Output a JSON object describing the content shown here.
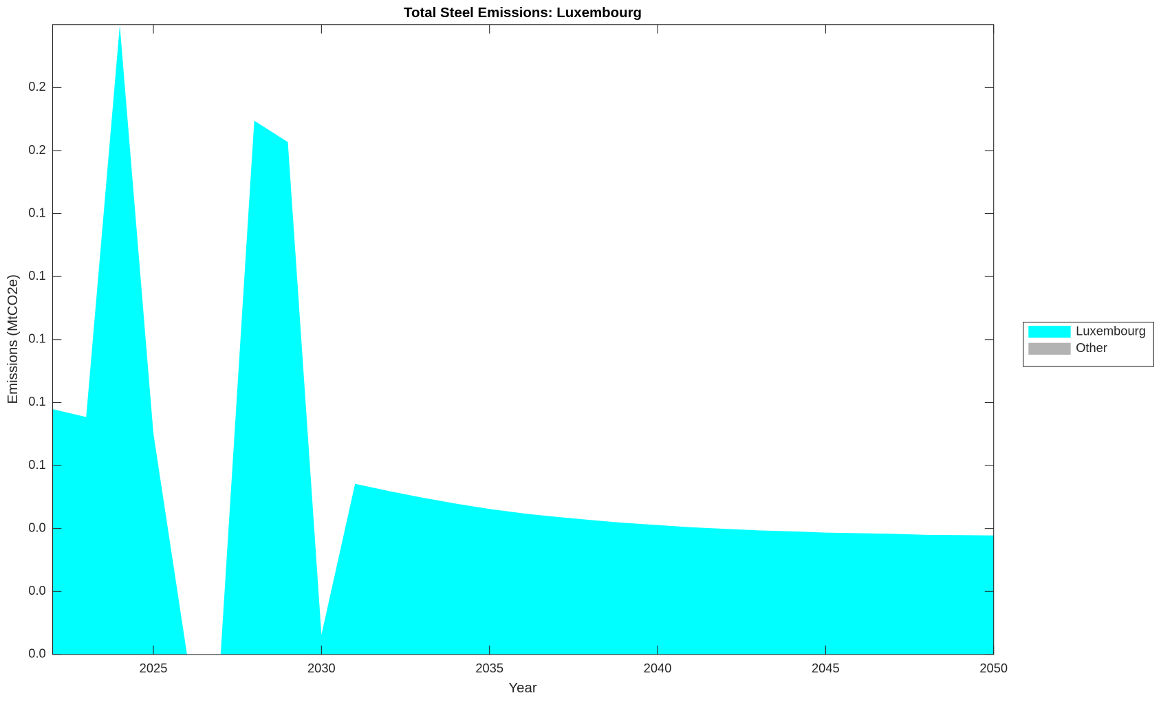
{
  "chart_data": {
    "type": "area",
    "stacked": true,
    "title": "Total Steel Emissions: Luxembourg",
    "x_label": "Year",
    "y_label": "Emissions (MtCO2e)",
    "x": [
      2022,
      2023,
      2024,
      2025,
      2026,
      2027,
      2028,
      2029,
      2030,
      2031,
      2032,
      2033,
      2034,
      2035,
      2036,
      2037,
      2038,
      2039,
      2040,
      2041,
      2042,
      2043,
      2044,
      2045,
      2046,
      2047,
      2048,
      2049,
      2050
    ],
    "series": [
      {
        "name": "Luxembourg",
        "color": "#00ffff",
        "values": [
          0.0779,
          0.0754,
          0.1998,
          0.0702,
          0,
          0,
          0.1695,
          0.1627,
          0.0063,
          0.0542,
          0.0519,
          0.0498,
          0.0479,
          0.0462,
          0.0448,
          0.0437,
          0.0427,
          0.0418,
          0.0411,
          0.0404,
          0.0399,
          0.0394,
          0.0391,
          0.0387,
          0.0385,
          0.0383,
          0.038,
          0.0379,
          0.0378
        ]
      },
      {
        "name": "Other",
        "color": "#b3b3b3",
        "values": [
          0,
          0,
          0,
          0,
          0,
          0,
          0,
          0,
          0,
          0,
          0,
          0,
          0,
          0,
          0,
          0,
          0,
          0,
          0,
          0,
          0,
          0,
          0,
          0,
          0,
          0,
          0,
          0,
          0
        ]
      }
    ],
    "xlim": [
      2022,
      2050
    ],
    "xticks": [
      2025,
      2030,
      2035,
      2040,
      2045,
      2050
    ],
    "ylim": [
      0,
      0.2
    ],
    "yticks": [
      {
        "value": 0,
        "label": "0.0"
      },
      {
        "value": 0.02,
        "label": "0.0"
      },
      {
        "value": 0.04,
        "label": "0.0"
      },
      {
        "value": 0.06,
        "label": "0.1"
      },
      {
        "value": 0.08,
        "label": "0.1"
      },
      {
        "value": 0.1,
        "label": "0.1"
      },
      {
        "value": 0.12,
        "label": "0.1"
      },
      {
        "value": 0.14,
        "label": "0.1"
      },
      {
        "value": 0.16,
        "label": "0.2"
      },
      {
        "value": 0.18,
        "label": "0.2"
      }
    ],
    "legend_position": "east-outside",
    "grid": false
  }
}
